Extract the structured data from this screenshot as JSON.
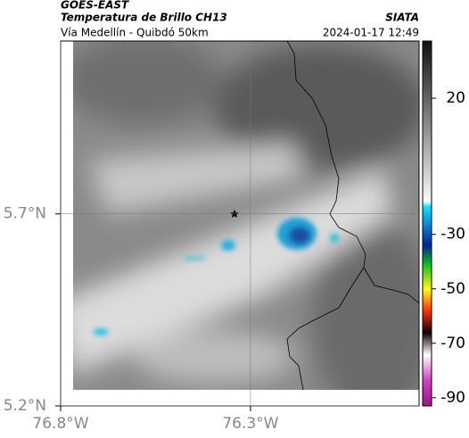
{
  "header": {
    "satellite": "GOES-EAST",
    "product": "Temperatura de Brillo CH13",
    "source": "SIATA",
    "region": "Vía Medellín - Quibdó 50km",
    "timestamp": "2024-01-17 12:49"
  },
  "map": {
    "latlim": [
      5.2,
      6.15
    ],
    "lonlim": [
      -76.8,
      -75.856
    ],
    "latticks": [
      {
        "value": 5.7,
        "label": "5.7°N"
      },
      {
        "value": 5.2,
        "label": "5.2°N"
      }
    ],
    "lonticks": [
      {
        "value": -76.8,
        "label": "76.8°W"
      },
      {
        "value": -76.3,
        "label": "76.3°W"
      }
    ],
    "grid": true
  },
  "colorbar": {
    "lim": [
      41,
      -93
    ],
    "ticks": [
      20,
      -30,
      -50,
      -70,
      -90
    ]
  }
}
